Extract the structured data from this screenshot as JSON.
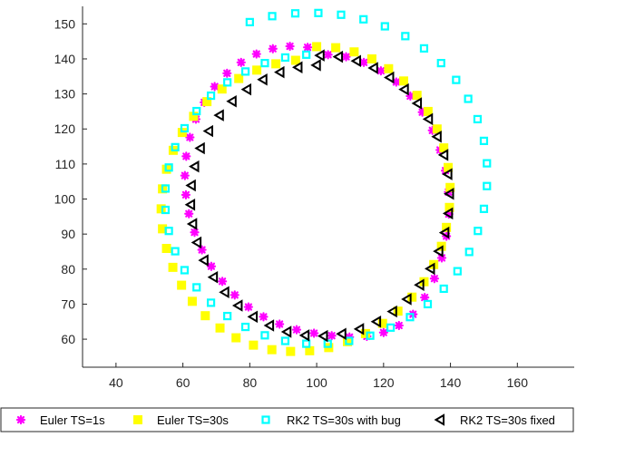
{
  "chart_data": {
    "type": "scatter",
    "title": "",
    "xlabel": "",
    "ylabel": "",
    "xlim": [
      30,
      177
    ],
    "ylim": [
      52,
      155
    ],
    "xticks": [
      40,
      60,
      80,
      100,
      120,
      140,
      160
    ],
    "yticks": [
      60,
      70,
      80,
      90,
      100,
      110,
      120,
      130,
      140,
      150
    ],
    "grid": false,
    "legend_position": "bottom",
    "series": [
      {
        "name": "Euler TS=1s",
        "marker": "asterisk",
        "color": "#ff00ff",
        "points": [
          [
            103.4,
            141.2
          ],
          [
            108.8,
            140.6
          ],
          [
            114.1,
            139.0
          ],
          [
            119.2,
            136.6
          ],
          [
            123.8,
            133.4
          ],
          [
            128.0,
            129.4
          ],
          [
            131.6,
            124.8
          ],
          [
            134.6,
            119.6
          ],
          [
            136.9,
            114.0
          ],
          [
            138.5,
            108.1
          ],
          [
            139.4,
            102.0
          ],
          [
            139.5,
            95.7
          ],
          [
            138.8,
            89.4
          ],
          [
            137.4,
            83.2
          ],
          [
            135.2,
            77.3
          ],
          [
            132.3,
            71.9
          ],
          [
            128.8,
            67.1
          ],
          [
            124.6,
            63.9
          ],
          [
            120.0,
            61.9
          ],
          [
            115.0,
            60.8
          ],
          [
            109.8,
            60.6
          ],
          [
            104.5,
            61.0
          ],
          [
            99.2,
            61.7
          ],
          [
            94.0,
            62.7
          ],
          [
            88.9,
            64.3
          ],
          [
            84.1,
            66.4
          ],
          [
            79.6,
            69.2
          ],
          [
            75.5,
            72.6
          ],
          [
            71.8,
            76.5
          ],
          [
            68.5,
            80.8
          ],
          [
            65.7,
            85.5
          ],
          [
            63.5,
            90.5
          ],
          [
            61.8,
            95.8
          ],
          [
            60.9,
            101.2
          ],
          [
            60.6,
            106.7
          ],
          [
            61.0,
            112.2
          ],
          [
            62.1,
            117.6
          ],
          [
            63.9,
            122.8
          ],
          [
            66.4,
            127.6
          ],
          [
            69.5,
            132.1
          ],
          [
            73.2,
            135.9
          ],
          [
            77.4,
            139.0
          ],
          [
            82.0,
            141.4
          ],
          [
            86.9,
            142.9
          ],
          [
            92.0,
            143.6
          ],
          [
            97.3,
            143.3
          ]
        ]
      },
      {
        "name": "Euler TS=30s",
        "marker": "square",
        "color": "#ffff00",
        "points": [
          [
            100.0,
            143.5
          ],
          [
            105.7,
            143.2
          ],
          [
            111.2,
            142.0
          ],
          [
            116.5,
            140.0
          ],
          [
            121.5,
            137.2
          ],
          [
            126.0,
            133.7
          ],
          [
            130.0,
            129.6
          ],
          [
            133.3,
            125.0
          ],
          [
            136.0,
            120.0
          ],
          [
            138.0,
            114.6
          ],
          [
            139.3,
            109.0
          ],
          [
            139.9,
            103.3
          ],
          [
            139.7,
            97.6
          ],
          [
            138.8,
            91.9
          ],
          [
            137.3,
            86.5
          ],
          [
            135.0,
            81.3
          ],
          [
            132.1,
            76.4
          ],
          [
            128.5,
            72.0
          ],
          [
            124.3,
            68.0
          ],
          [
            119.7,
            64.5
          ],
          [
            114.6,
            61.6
          ],
          [
            109.2,
            59.3
          ],
          [
            103.6,
            57.6
          ],
          [
            97.9,
            56.7
          ],
          [
            92.2,
            56.5
          ],
          [
            86.6,
            57.0
          ],
          [
            81.1,
            58.3
          ],
          [
            75.9,
            60.4
          ],
          [
            71.1,
            63.2
          ],
          [
            66.7,
            66.7
          ],
          [
            62.8,
            70.8
          ],
          [
            59.6,
            75.4
          ],
          [
            57.0,
            80.5
          ],
          [
            55.1,
            85.9
          ],
          [
            53.9,
            91.5
          ],
          [
            53.5,
            97.2
          ],
          [
            53.9,
            102.9
          ],
          [
            55.1,
            108.5
          ],
          [
            57.1,
            113.9
          ],
          [
            59.8,
            119.0
          ],
          [
            63.2,
            123.6
          ],
          [
            67.2,
            127.8
          ],
          [
            71.7,
            131.4
          ],
          [
            76.7,
            134.4
          ],
          [
            82.1,
            136.8
          ],
          [
            87.8,
            138.6
          ],
          [
            93.7,
            139.6
          ]
        ]
      },
      {
        "name": "RK2 TS=30s with bug",
        "marker": "square-open",
        "color": "#00ffff",
        "points": [
          [
            80.0,
            150.5
          ],
          [
            86.7,
            152.2
          ],
          [
            93.6,
            153.0
          ],
          [
            100.5,
            153.1
          ],
          [
            107.3,
            152.6
          ],
          [
            114.0,
            151.3
          ],
          [
            120.4,
            149.3
          ],
          [
            126.5,
            146.5
          ],
          [
            132.1,
            143.0
          ],
          [
            137.2,
            138.8
          ],
          [
            141.7,
            134.0
          ],
          [
            145.3,
            128.6
          ],
          [
            148.1,
            122.8
          ],
          [
            150.0,
            116.6
          ],
          [
            150.9,
            110.2
          ],
          [
            150.9,
            103.7
          ],
          [
            150.0,
            97.2
          ],
          [
            148.2,
            90.9
          ],
          [
            145.6,
            84.9
          ],
          [
            142.1,
            79.4
          ],
          [
            138.0,
            74.4
          ],
          [
            133.2,
            70.0
          ],
          [
            127.9,
            66.3
          ],
          [
            122.1,
            63.3
          ],
          [
            116.0,
            61.0
          ],
          [
            109.7,
            59.5
          ],
          [
            103.3,
            58.7
          ],
          [
            96.9,
            58.7
          ],
          [
            90.6,
            59.5
          ],
          [
            84.5,
            61.1
          ],
          [
            78.7,
            63.5
          ],
          [
            73.3,
            66.6
          ],
          [
            68.4,
            70.4
          ],
          [
            64.1,
            74.8
          ],
          [
            60.5,
            79.7
          ],
          [
            57.7,
            85.1
          ],
          [
            55.8,
            90.9
          ],
          [
            54.8,
            96.9
          ],
          [
            54.8,
            103.0
          ],
          [
            55.8,
            109.0
          ],
          [
            57.7,
            114.8
          ],
          [
            60.5,
            120.2
          ],
          [
            64.1,
            125.1
          ],
          [
            68.4,
            129.5
          ],
          [
            73.3,
            133.3
          ],
          [
            78.7,
            136.4
          ],
          [
            84.5,
            138.8
          ],
          [
            90.6,
            140.4
          ],
          [
            96.9,
            141.2
          ]
        ]
      },
      {
        "name": "RK2 TS=30s fixed",
        "marker": "triangle-left",
        "color": "#000000",
        "points": [
          [
            101.0,
            141.0
          ],
          [
            106.5,
            140.6
          ],
          [
            111.9,
            139.4
          ],
          [
            117.0,
            137.4
          ],
          [
            121.8,
            134.7
          ],
          [
            126.2,
            131.3
          ],
          [
            130.1,
            127.3
          ],
          [
            133.4,
            122.8
          ],
          [
            136.0,
            117.8
          ],
          [
            138.0,
            112.6
          ],
          [
            139.2,
            107.1
          ],
          [
            139.7,
            101.5
          ],
          [
            139.4,
            95.9
          ],
          [
            138.3,
            90.4
          ],
          [
            136.5,
            85.1
          ],
          [
            134.0,
            80.1
          ],
          [
            130.8,
            75.5
          ],
          [
            127.0,
            71.4
          ],
          [
            122.7,
            67.9
          ],
          [
            117.9,
            65.0
          ],
          [
            112.8,
            62.9
          ],
          [
            107.5,
            61.5
          ],
          [
            102.0,
            60.9
          ],
          [
            96.5,
            61.1
          ],
          [
            91.1,
            62.1
          ],
          [
            85.9,
            63.9
          ],
          [
            81.0,
            66.4
          ],
          [
            76.5,
            69.6
          ],
          [
            72.5,
            73.4
          ],
          [
            69.1,
            77.7
          ],
          [
            66.3,
            82.5
          ],
          [
            64.2,
            87.6
          ],
          [
            62.9,
            92.9
          ],
          [
            62.3,
            98.4
          ],
          [
            62.5,
            103.9
          ],
          [
            63.5,
            109.3
          ],
          [
            65.2,
            114.5
          ],
          [
            67.7,
            119.4
          ],
          [
            70.9,
            123.9
          ],
          [
            74.7,
            127.9
          ],
          [
            79.1,
            131.3
          ],
          [
            83.9,
            134.1
          ],
          [
            89.0,
            136.2
          ],
          [
            94.4,
            137.6
          ],
          [
            99.9,
            138.2
          ]
        ]
      }
    ]
  }
}
